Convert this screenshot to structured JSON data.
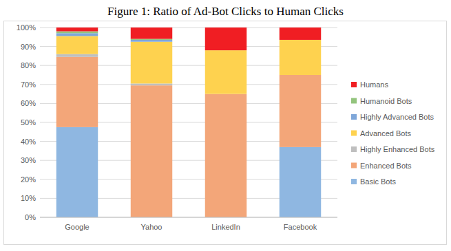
{
  "chart_data": {
    "type": "bar",
    "title": "Figure 1: Ratio of Ad-Bot Clicks to Human Clicks",
    "categories": [
      "Google",
      "Yahoo",
      "LinkedIn",
      "Facebook"
    ],
    "stacked": true,
    "grid": true,
    "legend": "right",
    "ylim": [
      0,
      100
    ],
    "yticks": [
      {
        "value": 0,
        "label": "0%"
      },
      {
        "value": 10,
        "label": "10%"
      },
      {
        "value": 20,
        "label": "20%"
      },
      {
        "value": 30,
        "label": "30%"
      },
      {
        "value": 40,
        "label": "40%"
      },
      {
        "value": 50,
        "label": "50%"
      },
      {
        "value": 60,
        "label": "60%"
      },
      {
        "value": 70,
        "label": "70%"
      },
      {
        "value": 80,
        "label": "80%"
      },
      {
        "value": 90,
        "label": "90%"
      },
      {
        "value": 100,
        "label": "100%"
      }
    ],
    "series": [
      {
        "name": "Basic Bots",
        "color": "#8fb7e1",
        "values": [
          47.5,
          0,
          0,
          37
        ]
      },
      {
        "name": "Enhanced Bots",
        "color": "#f3a679",
        "values": [
          37,
          69.5,
          65,
          38
        ]
      },
      {
        "name": "Highly Enhanced Bots",
        "color": "#bfbfbf",
        "values": [
          1.5,
          1,
          0,
          0
        ]
      },
      {
        "name": "Advanced Bots",
        "color": "#fed24f",
        "values": [
          9.5,
          22,
          23,
          18.5
        ]
      },
      {
        "name": "Highly Advanced Bots",
        "color": "#7fa7d9",
        "values": [
          1.5,
          1,
          0,
          0
        ]
      },
      {
        "name": "Humanoid Bots",
        "color": "#93c47d",
        "values": [
          1,
          0.5,
          0,
          0
        ]
      },
      {
        "name": "Humans",
        "color": "#f01e23",
        "values": [
          2,
          6,
          12,
          6.5
        ]
      }
    ]
  }
}
